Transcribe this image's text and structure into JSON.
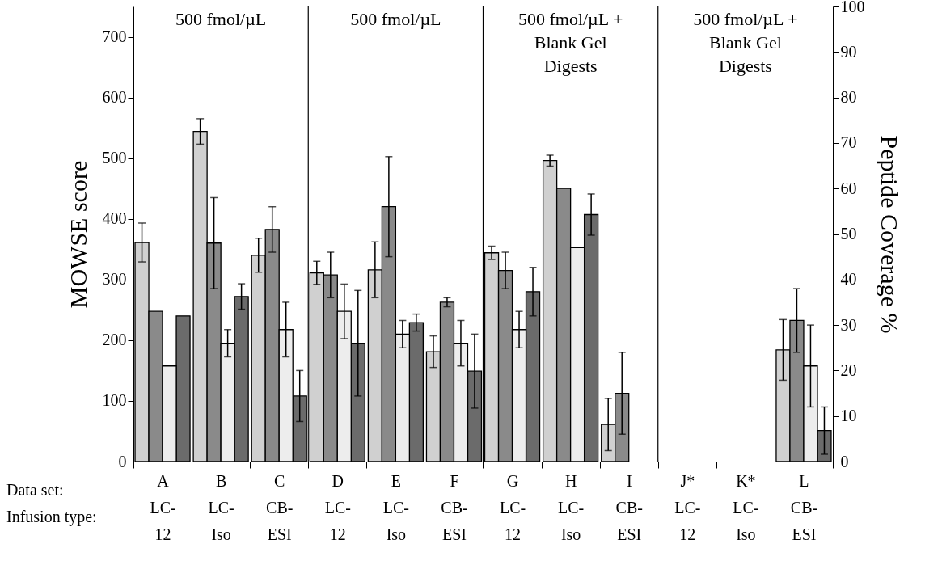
{
  "chart_data": {
    "type": "bar",
    "ylabel": "MOWSE score",
    "y2label": "Peptide Coverage %",
    "categories": [
      "A\nLC-\n12",
      "B\nLC-\nIso",
      "C\nCB-\nESI",
      "D\nLC-\n12",
      "E\nLC-\nIso",
      "F\nCB-\nESI",
      "G\nLC-\n12",
      "H\nLC-\nIso",
      "I\nCB-\nESI",
      "J*\nLC-\n12",
      "K*\nLC-\nIso",
      "L\nCB-\nESI"
    ],
    "series": [
      {
        "color": "#d0d0d0",
        "values": [
          361,
          544,
          340,
          311,
          316,
          181,
          344,
          496,
          61,
          null,
          null,
          184
        ],
        "errors": [
          32,
          21,
          28,
          19,
          46,
          26,
          11,
          9,
          43,
          null,
          null,
          50
        ]
      },
      {
        "color": "#8a8a8a",
        "axis": "y2",
        "values": [
          33,
          48,
          51,
          41,
          56,
          35,
          42,
          60,
          15,
          null,
          null,
          31
        ],
        "errors": [
          null,
          10,
          5,
          5,
          11,
          1,
          4,
          null,
          9,
          null,
          null,
          7
        ]
      },
      {
        "color": "#ededed",
        "axis": "y2",
        "values": [
          21,
          26,
          29,
          33,
          28,
          26,
          29,
          47,
          null,
          null,
          null,
          21
        ],
        "errors": [
          null,
          3,
          6,
          6,
          3,
          5,
          4,
          null,
          null,
          null,
          null,
          9
        ]
      },
      {
        "color": "#6b6b6b",
        "values": [
          240,
          272,
          108,
          195,
          229,
          149,
          280,
          407,
          null,
          null,
          null,
          51
        ],
        "errors": [
          null,
          21,
          42,
          87,
          14,
          61,
          40,
          34,
          null,
          null,
          null,
          39
        ]
      }
    ],
    "ylim": [
      0,
      750
    ],
    "yticks": [
      0,
      100,
      200,
      300,
      400,
      500,
      600,
      700
    ],
    "y2lim": [
      0,
      100
    ],
    "y2ticks": [
      0,
      10,
      20,
      30,
      40,
      50,
      60,
      70,
      80,
      90,
      100
    ],
    "annotations": [
      "Data set:",
      "Infusion type:",
      "500 fmol/µL",
      "500 fmol/µL",
      "500 fmol/µL +\nBlank Gel\nDigests",
      "500 fmol/µL +\nBlank Gel\nDigests"
    ]
  }
}
